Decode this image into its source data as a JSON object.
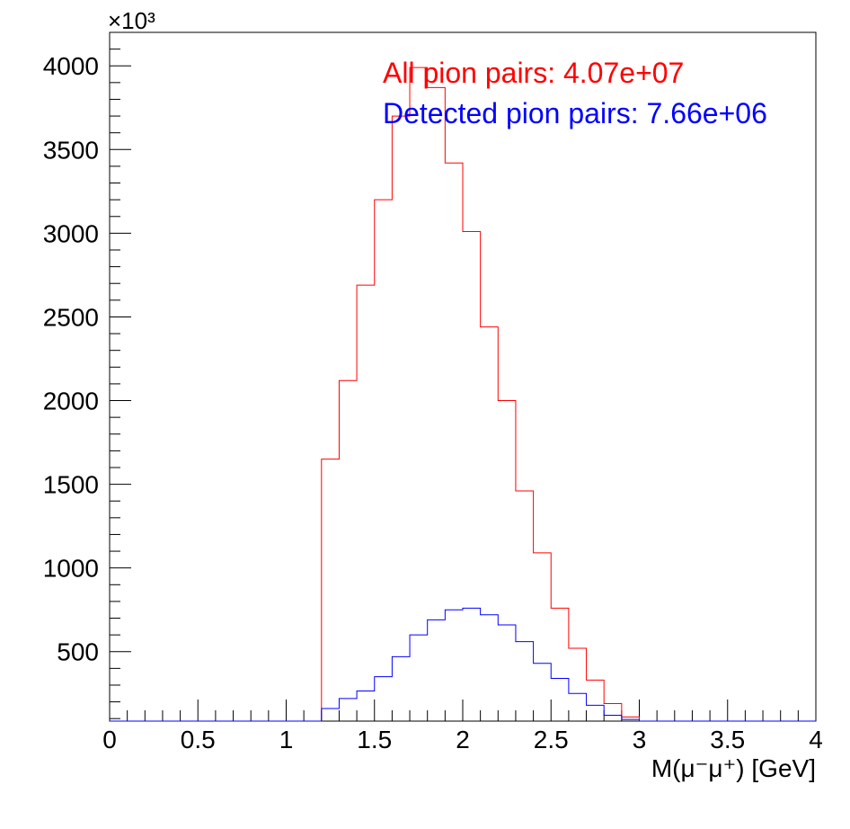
{
  "chart_data": {
    "type": "histogram-step",
    "x_label": "M(μ⁻μ⁺) [GeV]",
    "xlim": [
      0,
      4
    ],
    "ylim": [
      85,
      4200
    ],
    "y_multiplier_label": "×10³",
    "x_ticks": [
      "0",
      "0.5",
      "1",
      "1.5",
      "2",
      "2.5",
      "3",
      "3.5",
      "4"
    ],
    "y_ticks": [
      "500",
      "1000",
      "1500",
      "2000",
      "2500",
      "3000",
      "3500",
      "4000"
    ],
    "bin_edges": [
      0,
      0.1,
      0.2,
      0.3,
      0.4,
      0.5,
      0.6,
      0.7,
      0.8,
      0.9,
      1.0,
      1.1,
      1.2,
      1.3,
      1.4,
      1.5,
      1.6,
      1.7,
      1.8,
      1.9,
      2.0,
      2.1,
      2.2,
      2.3,
      2.4,
      2.5,
      2.6,
      2.7,
      2.8,
      2.9,
      3.0,
      3.1,
      3.2,
      3.3,
      3.4,
      3.5,
      3.6,
      3.7,
      3.8,
      3.9,
      4.0
    ],
    "series": [
      {
        "name": "All pion pairs",
        "label": "All pion pairs: 4.07e+07",
        "color": "#ff0000",
        "values": [
          85,
          85,
          85,
          85,
          85,
          85,
          85,
          85,
          85,
          85,
          85,
          85,
          1650,
          2120,
          2690,
          3200,
          3700,
          3990,
          3870,
          3420,
          3010,
          2440,
          2000,
          1460,
          1090,
          760,
          520,
          330,
          190,
          110,
          85,
          85,
          85,
          85,
          85,
          85,
          85,
          85,
          85,
          85
        ]
      },
      {
        "name": "Detected pion pairs",
        "label": "Detected pion pairs: 7.66e+06",
        "color": "#0000ff",
        "bin_edges": [
          0,
          0.1,
          0.2,
          0.3,
          0.4,
          0.5,
          0.6,
          0.7,
          0.8,
          0.9,
          1.0,
          1.1,
          1.2,
          1.25,
          1.3,
          1.35,
          1.4,
          1.45,
          1.5,
          1.55,
          1.6,
          1.65,
          1.7,
          1.75,
          1.8,
          1.85,
          1.9,
          1.95,
          2.0,
          2.05,
          2.1,
          2.15,
          2.2,
          2.25,
          2.3,
          2.35,
          2.4,
          2.45,
          2.5,
          2.55,
          2.6,
          2.65,
          2.7,
          2.75,
          2.8,
          2.85,
          2.9,
          2.95,
          3.0,
          3.1,
          3.2,
          3.3,
          3.4,
          3.5,
          3.6,
          3.7,
          3.8,
          3.9,
          4.0
        ],
        "values": [
          85,
          85,
          85,
          85,
          85,
          85,
          85,
          85,
          85,
          85,
          85,
          85,
          160,
          160,
          220,
          220,
          265,
          265,
          350,
          350,
          470,
          470,
          600,
          600,
          690,
          690,
          750,
          750,
          760,
          760,
          720,
          720,
          660,
          660,
          560,
          560,
          430,
          430,
          340,
          340,
          250,
          250,
          180,
          180,
          120,
          120,
          95,
          95,
          85,
          85,
          85,
          85,
          85,
          85,
          85,
          85,
          85,
          85
        ]
      }
    ]
  }
}
